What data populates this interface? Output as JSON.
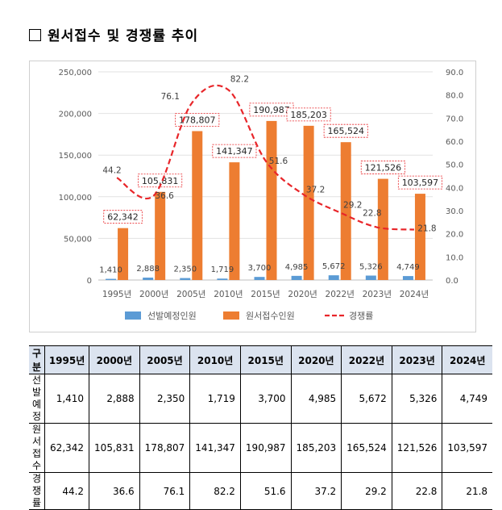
{
  "title": "원서접수 및 경쟁률 추이",
  "chart_data": {
    "type": "bar",
    "categories": [
      "1995년",
      "2000년",
      "2005년",
      "2010년",
      "2015년",
      "2020년",
      "2022년",
      "2023년",
      "2024년"
    ],
    "series": [
      {
        "name": "선발예정인원",
        "type": "bar",
        "axis": "left",
        "color": "#5b9bd5",
        "values": [
          1410,
          2888,
          2350,
          1719,
          3700,
          4985,
          5672,
          5326,
          4749
        ],
        "labels": [
          "1,410",
          "2,888",
          "2,350",
          "1,719",
          "3,700",
          "4,985",
          "5,672",
          "5,326",
          "4,749"
        ]
      },
      {
        "name": "원서접수인원",
        "type": "bar",
        "axis": "left",
        "color": "#ed7d31",
        "values": [
          62342,
          105831,
          178807,
          141347,
          190987,
          185203,
          165524,
          121526,
          103597
        ],
        "labels": [
          "62,342",
          "105,831",
          "178,807",
          "141,347",
          "190,987",
          "185,203",
          "165,524",
          "121,526",
          "103,597"
        ]
      },
      {
        "name": "경쟁률",
        "type": "line",
        "axis": "right",
        "color": "#e8262a",
        "style": "dashed-smooth",
        "values": [
          44.2,
          36.6,
          76.1,
          82.2,
          51.6,
          37.2,
          29.2,
          22.8,
          21.8
        ],
        "labels": [
          "44.2",
          "36.6",
          "76.1",
          "82.2",
          "51.6",
          "37.2",
          "29.2",
          "22.8",
          "21.8"
        ]
      }
    ],
    "y_left": {
      "min": 0,
      "max": 250000,
      "ticks": [
        "0",
        "50,000",
        "100,000",
        "150,000",
        "200,000",
        "250,000"
      ]
    },
    "y_right": {
      "min": 0,
      "max": 90,
      "ticks": [
        "0.0",
        "10.0",
        "20.0",
        "30.0",
        "40.0",
        "50.0",
        "60.0",
        "70.0",
        "80.0",
        "90.0"
      ]
    },
    "legend": "bottom",
    "grid": true
  },
  "table": {
    "header": [
      "구분",
      "1995년",
      "2000년",
      "2005년",
      "2010년",
      "2015년",
      "2020년",
      "2022년",
      "2023년",
      "2024년"
    ],
    "rows": [
      {
        "label": [
          "선발",
          "예정"
        ],
        "values": [
          "1,410",
          "2,888",
          "2,350",
          "1,719",
          "3,700",
          "4,985",
          "5,672",
          "5,326",
          "4,749"
        ]
      },
      {
        "label": [
          "원서",
          "접수"
        ],
        "values": [
          "62,342",
          "105,831",
          "178,807",
          "141,347",
          "190,987",
          "185,203",
          "165,524",
          "121,526",
          "103,597"
        ]
      },
      {
        "label": [
          "경쟁",
          "률"
        ],
        "values": [
          "44.2",
          "36.6",
          "76.1",
          "82.2",
          "51.6",
          "37.2",
          "29.2",
          "22.8",
          "21.8"
        ]
      }
    ]
  }
}
